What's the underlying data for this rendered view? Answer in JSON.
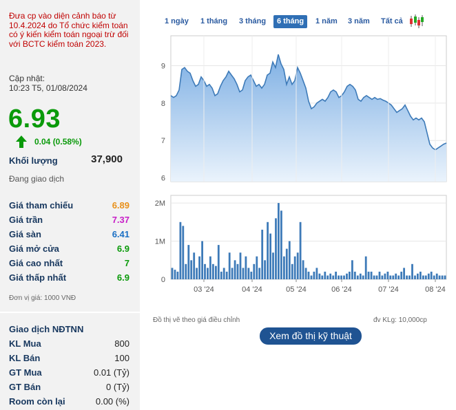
{
  "warning": "Đưa cp vào diện cảnh báo từ 10.4.2024 do Tổ chức kiểm toán có ý kiến kiểm toán ngoại trừ đối với BCTC kiểm toán 2023.",
  "update": {
    "label": "Cập nhật:",
    "time": "10:23 T5, 01/08/2024"
  },
  "quote": {
    "price": "6.93",
    "change": "0.04 (0.58%)",
    "volume_label": "Khối lượng",
    "volume": "37,900",
    "status": "Đang giao dịch"
  },
  "stats": [
    {
      "label": "Giá tham chiếu",
      "value": "6.89",
      "color": "#e8901a"
    },
    {
      "label": "Giá trần",
      "value": "7.37",
      "color": "#c71dc7"
    },
    {
      "label": "Giá sàn",
      "value": "6.41",
      "color": "#1a6fc4"
    },
    {
      "label": "Giá mở cửa",
      "value": "6.9",
      "color": "#0a9a0a"
    },
    {
      "label": "Giá cao nhất",
      "value": "7",
      "color": "#0a9a0a"
    },
    {
      "label": "Giá thấp nhất",
      "value": "6.9",
      "color": "#0a9a0a"
    }
  ],
  "unit_note": "Đơn vị giá: 1000 VNĐ",
  "foreign": {
    "title": "Giao dịch NĐTNN",
    "rows": [
      {
        "label": "KL Mua",
        "value": "800"
      },
      {
        "label": "KL Bán",
        "value": "100"
      },
      {
        "label": "GT Mua",
        "value": "0.01 (Tỷ)"
      },
      {
        "label": "GT Bán",
        "value": "0 (Tỷ)"
      },
      {
        "label": "Room còn lại",
        "value": "0.00 (%)"
      }
    ]
  },
  "tabs": [
    "1 ngày",
    "1 tháng",
    "3 tháng",
    "6 tháng",
    "1 năm",
    "3 năm",
    "Tất cả"
  ],
  "active_tab": "6 tháng",
  "chart_note": "Đồ thị vẽ theo giá điều chỉnh",
  "volume_unit": "đv KLg: 10,000cp",
  "tech_button": "Xem đồ thị kỹ thuật",
  "colors": {
    "up": "#0a9a0a",
    "accent": "#2f6fb5",
    "line": "#3d7ab8"
  },
  "chart_data": [
    {
      "type": "area",
      "y_ticks": [
        "6",
        "7",
        "8",
        "9"
      ],
      "ylim": [
        5.9,
        9.8
      ],
      "values": [
        8.2,
        8.15,
        8.2,
        8.35,
        8.9,
        8.95,
        8.85,
        8.8,
        8.6,
        8.45,
        8.5,
        8.7,
        8.6,
        8.45,
        8.5,
        8.4,
        8.2,
        8.25,
        8.45,
        8.6,
        8.7,
        8.85,
        8.75,
        8.65,
        8.5,
        8.3,
        8.35,
        8.6,
        8.7,
        8.75,
        8.6,
        8.45,
        8.5,
        8.4,
        8.5,
        8.75,
        8.8,
        9.1,
        8.95,
        9.3,
        9.05,
        8.9,
        8.5,
        8.7,
        8.5,
        8.6,
        8.95,
        8.8,
        8.6,
        8.4,
        8.05,
        7.85,
        7.9,
        8.0,
        8.05,
        8.1,
        8.05,
        8.15,
        8.3,
        8.35,
        8.3,
        8.15,
        8.2,
        8.3,
        8.45,
        8.5,
        8.45,
        8.35,
        8.1,
        8.05,
        8.15,
        8.2,
        8.15,
        8.1,
        8.15,
        8.1,
        8.12,
        8.08,
        8.05,
        8.0,
        7.95,
        7.85,
        7.75,
        7.8,
        7.85,
        7.95,
        7.8,
        7.65,
        7.55,
        7.6,
        7.55,
        7.6,
        7.5,
        7.2,
        6.9,
        6.8,
        6.75,
        6.8,
        6.85,
        6.9,
        6.93
      ]
    },
    {
      "type": "bar",
      "y_ticks": [
        "0",
        "1M",
        "2M"
      ],
      "ylim": [
        0,
        2.2
      ],
      "x_ticks": [
        "03 '24",
        "04 '24",
        "05 '24",
        "06 '24",
        "07 '24",
        "08 '24"
      ],
      "values": [
        0.3,
        0.25,
        0.2,
        1.5,
        1.4,
        0.4,
        0.9,
        0.5,
        0.7,
        0.3,
        0.6,
        1.0,
        0.4,
        0.3,
        0.6,
        0.4,
        0.35,
        0.9,
        0.2,
        0.3,
        0.2,
        0.7,
        0.3,
        0.5,
        0.4,
        0.7,
        0.3,
        0.6,
        0.3,
        0.2,
        0.4,
        0.6,
        0.3,
        1.3,
        0.5,
        1.5,
        1.2,
        0.7,
        1.6,
        2.0,
        1.8,
        0.6,
        0.8,
        1.0,
        0.4,
        0.6,
        0.7,
        1.5,
        0.5,
        0.3,
        0.2,
        0.1,
        0.2,
        0.3,
        0.15,
        0.1,
        0.2,
        0.1,
        0.15,
        0.1,
        0.2,
        0.1,
        0.1,
        0.1,
        0.15,
        0.2,
        0.5,
        0.2,
        0.1,
        0.15,
        0.1,
        0.6,
        0.2,
        0.2,
        0.1,
        0.1,
        0.2,
        0.1,
        0.15,
        0.2,
        0.1,
        0.1,
        0.15,
        0.1,
        0.2,
        0.3,
        0.1,
        0.1,
        0.4,
        0.1,
        0.15,
        0.2,
        0.1,
        0.1,
        0.15,
        0.2,
        0.1,
        0.15,
        0.1,
        0.1,
        0.1
      ]
    }
  ]
}
